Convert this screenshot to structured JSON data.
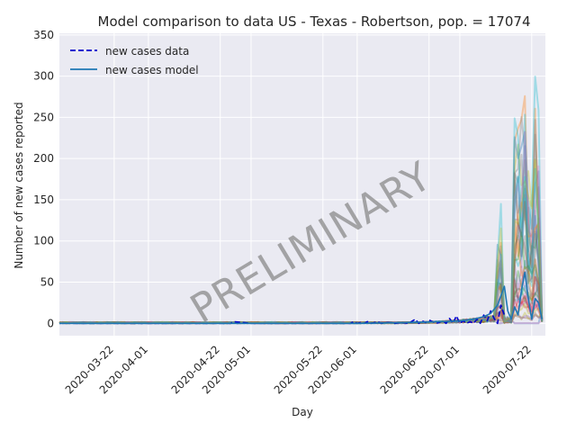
{
  "chart_data": {
    "type": "line",
    "title": "Model comparison to data US - Texas - Robertson, pop. = 17074",
    "xlabel": "Day",
    "ylabel": "Number of new cases reported",
    "watermark": "PRELIMINARY",
    "x_range": [
      "2020-03-06",
      "2020-07-26"
    ],
    "ylim": [
      -15,
      352
    ],
    "yticks": [
      0,
      50,
      100,
      150,
      200,
      250,
      300,
      350
    ],
    "xticks": [
      "2020-03-22",
      "2020-04-01",
      "2020-04-22",
      "2020-05-01",
      "2020-05-22",
      "2020-06-01",
      "2020-06-22",
      "2020-07-01",
      "2020-07-22"
    ],
    "grid": true,
    "legend_position": "top-left",
    "legend": [
      {
        "label": "new cases data",
        "style": "dashed",
        "color": "#0000cc"
      },
      {
        "label": "new cases model",
        "style": "solid",
        "color": "#1f77b4"
      }
    ],
    "series": [
      {
        "name": "new cases data",
        "color": "#0000cc",
        "dates": [
          "2020-03-10",
          "2020-03-20",
          "2020-04-01",
          "2020-04-10",
          "2020-04-20",
          "2020-04-25",
          "2020-04-26",
          "2020-05-01",
          "2020-05-10",
          "2020-05-20",
          "2020-05-30",
          "2020-05-31",
          "2020-06-01",
          "2020-06-02",
          "2020-06-03",
          "2020-06-04",
          "2020-06-05",
          "2020-06-06",
          "2020-06-07",
          "2020-06-08",
          "2020-06-10",
          "2020-06-12",
          "2020-06-14",
          "2020-06-16",
          "2020-06-18",
          "2020-06-19",
          "2020-06-20",
          "2020-06-21",
          "2020-06-22",
          "2020-06-23",
          "2020-06-24",
          "2020-06-25",
          "2020-06-26",
          "2020-06-27",
          "2020-06-28",
          "2020-06-29",
          "2020-06-30",
          "2020-07-01",
          "2020-07-02",
          "2020-07-03",
          "2020-07-04",
          "2020-07-05",
          "2020-07-06",
          "2020-07-07",
          "2020-07-08",
          "2020-07-09",
          "2020-07-10",
          "2020-07-11",
          "2020-07-12",
          "2020-07-13",
          "2020-07-14"
        ],
        "values": [
          0,
          0,
          0,
          0,
          0,
          0,
          2,
          0,
          0,
          0,
          0,
          2,
          0,
          1,
          0,
          2,
          0,
          1,
          2,
          0,
          1,
          0,
          1,
          0,
          5,
          0,
          3,
          1,
          4,
          2,
          0,
          1,
          3,
          0,
          6,
          0,
          9,
          0,
          3,
          0,
          2,
          0,
          5,
          0,
          10,
          3,
          15,
          6,
          0,
          22,
          10
        ]
      },
      {
        "name": "new cases model",
        "color": "#1f77b4",
        "dates": [
          "2020-03-06",
          "2020-03-20",
          "2020-04-10",
          "2020-05-01",
          "2020-05-20",
          "2020-06-01",
          "2020-06-15",
          "2020-06-25",
          "2020-07-01",
          "2020-07-05",
          "2020-07-08",
          "2020-07-10",
          "2020-07-12",
          "2020-07-14",
          "2020-07-15",
          "2020-07-16",
          "2020-07-17",
          "2020-07-18",
          "2020-07-19",
          "2020-07-20",
          "2020-07-21",
          "2020-07-22",
          "2020-07-23",
          "2020-07-24",
          "2020-07-25"
        ],
        "values": [
          0,
          0,
          0,
          0,
          0,
          0,
          1,
          2,
          3,
          5,
          8,
          12,
          22,
          45,
          15,
          5,
          20,
          10,
          40,
          62,
          30,
          5,
          30,
          25,
          5
        ]
      }
    ],
    "ensemble_colors": [
      "#1f77b4",
      "#ff7f0e",
      "#2ca02c",
      "#d62728",
      "#9467bd",
      "#8c564b",
      "#e377c2",
      "#7f7f7f",
      "#bcbd22",
      "#17becf"
    ],
    "ensemble_peaks": [
      {
        "date": "2020-07-12",
        "value": 110
      },
      {
        "date": "2020-07-13",
        "value": 150
      },
      {
        "date": "2020-07-17",
        "value": 285
      },
      {
        "date": "2020-07-18",
        "value": 298
      },
      {
        "date": "2020-07-19",
        "value": 270
      },
      {
        "date": "2020-07-20",
        "value": 336
      },
      {
        "date": "2020-07-21",
        "value": 215
      },
      {
        "date": "2020-07-22",
        "value": 170
      },
      {
        "date": "2020-07-23",
        "value": 315
      },
      {
        "date": "2020-07-24",
        "value": 265
      }
    ]
  }
}
